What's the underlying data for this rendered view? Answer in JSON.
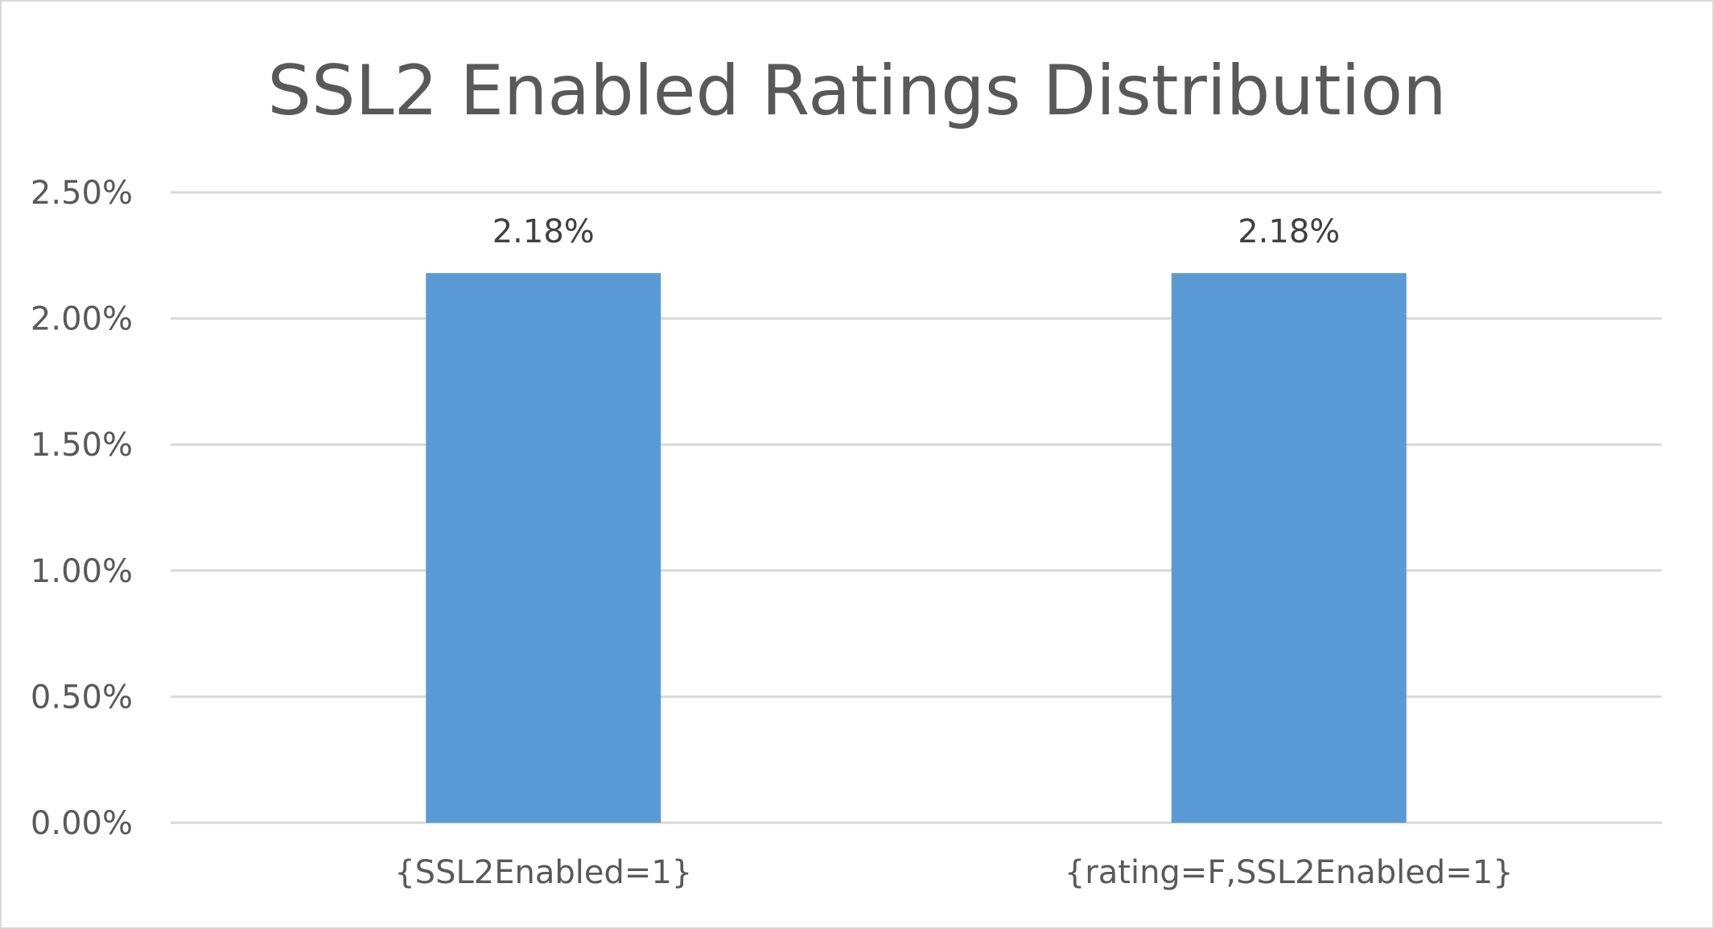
{
  "chart_data": {
    "type": "bar",
    "title": "SSL2 Enabled Ratings Distribution",
    "xlabel": "",
    "ylabel": "",
    "categories": [
      "{SSL2Enabled=1}",
      "{rating=F,SSL2Enabled=1}"
    ],
    "values": [
      2.18,
      2.18
    ],
    "data_labels": [
      "2.18%",
      "2.18%"
    ],
    "ylim": [
      0,
      2.5
    ],
    "yticks": [
      0,
      0.5,
      1.0,
      1.5,
      2.0,
      2.5
    ],
    "ytick_labels": [
      "0.00%",
      "0.50%",
      "1.00%",
      "1.50%",
      "2.00%",
      "2.50%"
    ],
    "grid": true,
    "legend": "none",
    "bar_color": "#5B9BD5",
    "gridline_color": "#d9d9d9",
    "text_color": "#595959"
  }
}
